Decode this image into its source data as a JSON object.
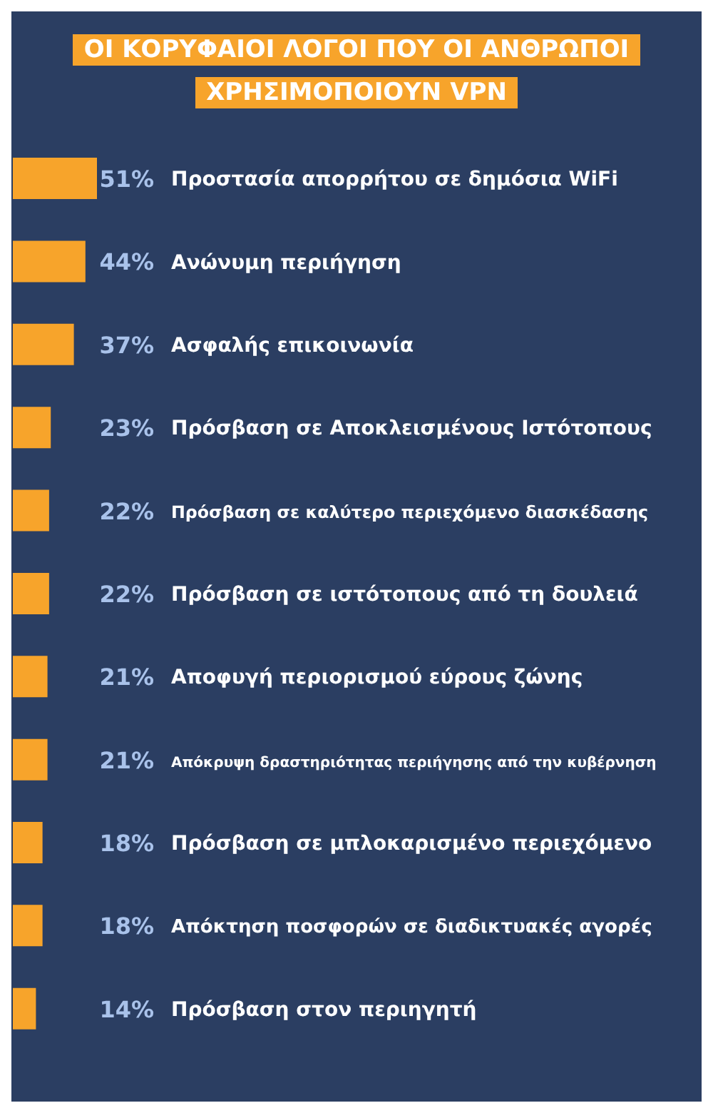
{
  "chart_data": {
    "type": "bar",
    "orientation": "horizontal",
    "title": "ΟΙ ΚΟΡΥΦΑΙΟΙ ΛΟΓΟΙ ΠΟΥ ΟΙ ΑΝΘΡΩΠΟΙ ΧΡΗΣΙΜΟΠΟΙΟΥΝ VPN",
    "categories": [
      "Προστασία απορρήτου σε δημόσια WiFi",
      "Ανώνυμη περιήγηση",
      "Ασφαλής επικοινωνία",
      "Πρόσβαση σε Αποκλεισμένους Ιστότοπους",
      "Πρόσβαση σε καλύτερο περιεχόμενο διασκέδασης",
      "Πρόσβαση σε ιστότοπους από τη δουλειά",
      "Αποφυγή περιορισμού εύρους ζώνης",
      "Απόκρυψη δραστηριότητας περιήγησης από την κυβέρνηση",
      "Πρόσβαση σε μπλοκαρισμένο περιεχόμενο",
      "Απόκτηση ποσφορών σε διαδικτυακές αγορές",
      "Πρόσβαση στον περιηγητή"
    ],
    "values": [
      51,
      44,
      37,
      23,
      22,
      22,
      21,
      21,
      18,
      18,
      14
    ],
    "value_labels": [
      "51%",
      "44%",
      "37%",
      "23%",
      "22%",
      "22%",
      "21%",
      "21%",
      "18%",
      "18%",
      "14%"
    ],
    "color": "#f7a42b"
  }
}
